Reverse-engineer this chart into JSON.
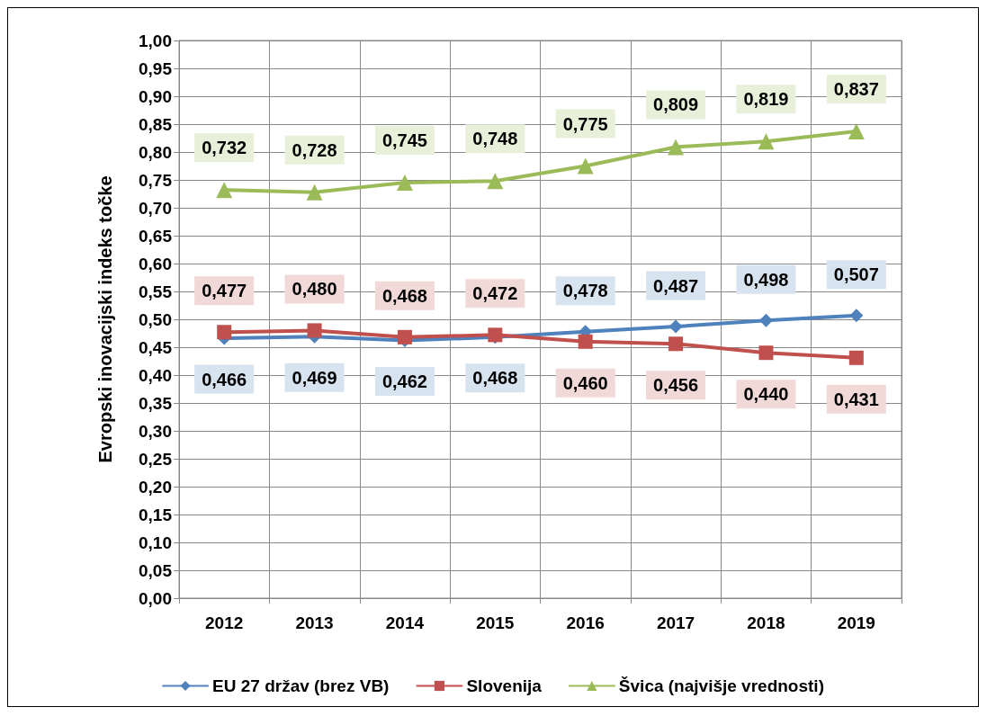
{
  "chart_data": {
    "type": "line",
    "ylabel": "Evropski inovacijski indeks točke",
    "categories": [
      "2012",
      "2013",
      "2014",
      "2015",
      "2016",
      "2017",
      "2018",
      "2019"
    ],
    "series": [
      {
        "name": "EU 27 držav (brez VB)",
        "color": "#4f81bd",
        "marker": "diamond",
        "values": [
          0.466,
          0.469,
          0.462,
          0.468,
          0.478,
          0.487,
          0.498,
          0.507
        ],
        "value_labels": [
          "0,466",
          "0,469",
          "0,462",
          "0,468",
          "0,478",
          "0,487",
          "0,498",
          "0,507"
        ]
      },
      {
        "name": "Slovenija",
        "color": "#c0504d",
        "marker": "square",
        "values": [
          0.477,
          0.48,
          0.468,
          0.472,
          0.46,
          0.456,
          0.44,
          0.431
        ],
        "value_labels": [
          "0,477",
          "0,480",
          "0,468",
          "0,472",
          "0,460",
          "0,456",
          "0,440",
          "0,431"
        ]
      },
      {
        "name": "Švica (najvišje vrednosti)",
        "color": "#9bbb59",
        "marker": "triangle",
        "values": [
          0.732,
          0.728,
          0.745,
          0.748,
          0.775,
          0.809,
          0.819,
          0.837
        ],
        "value_labels": [
          "0,732",
          "0,728",
          "0,745",
          "0,748",
          "0,775",
          "0,809",
          "0,819",
          "0,837"
        ]
      }
    ],
    "ylim": [
      0,
      1
    ],
    "yticks": [
      {
        "value": 0,
        "label": "0,00"
      },
      {
        "value": 0.05,
        "label": "0,05"
      },
      {
        "value": 0.1,
        "label": "0,10"
      },
      {
        "value": 0.15,
        "label": "0,15"
      },
      {
        "value": 0.2,
        "label": "0,20"
      },
      {
        "value": 0.25,
        "label": "0,25"
      },
      {
        "value": 0.3,
        "label": "0,30"
      },
      {
        "value": 0.35,
        "label": "0,35"
      },
      {
        "value": 0.4,
        "label": "0,40"
      },
      {
        "value": 0.45,
        "label": "0,45"
      },
      {
        "value": 0.5,
        "label": "0,50"
      },
      {
        "value": 0.55,
        "label": "0,55"
      },
      {
        "value": 0.6,
        "label": "0,60"
      },
      {
        "value": 0.65,
        "label": "0,65"
      },
      {
        "value": 0.7,
        "label": "0,70"
      },
      {
        "value": 0.75,
        "label": "0,75"
      },
      {
        "value": 0.8,
        "label": "0,80"
      },
      {
        "value": 0.85,
        "label": "0,85"
      },
      {
        "value": 0.9,
        "label": "0,90"
      },
      {
        "value": 0.95,
        "label": "0,95"
      },
      {
        "value": 1,
        "label": "1,00"
      }
    ],
    "grid": true,
    "legend": "bottom",
    "line_style": "solid"
  }
}
